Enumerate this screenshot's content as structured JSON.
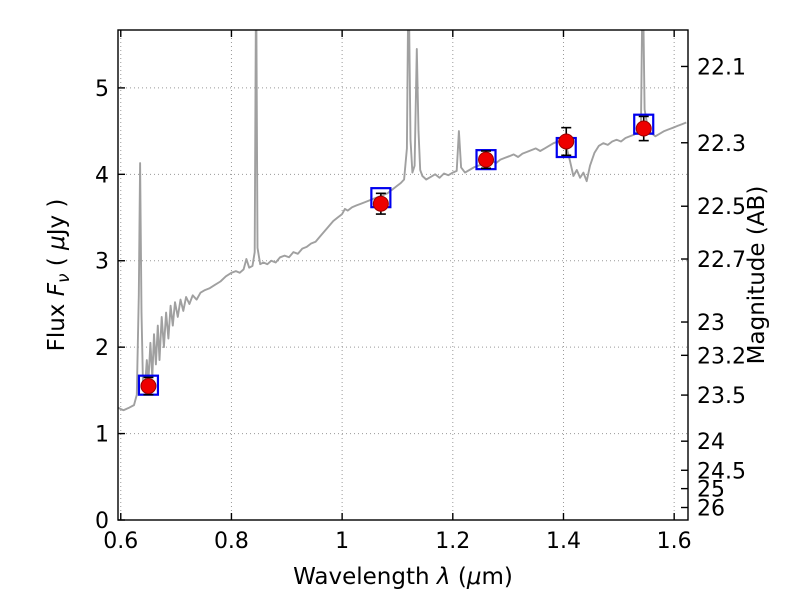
{
  "figure": {
    "background": "#ffffff"
  },
  "chart_data": {
    "type": "line",
    "title": "",
    "xlabel": "Wavelength λ (μm)",
    "xlabel_parts": [
      {
        "t": "Wavelength  "
      },
      {
        "t": "λ",
        "i": true
      },
      {
        "t": " ("
      },
      {
        "t": "μ",
        "i": true
      },
      {
        "t": "m)"
      }
    ],
    "ylabel_left": "Flux Fν ( μJy )",
    "ylabel_left_parts": [
      {
        "t": "Flux  "
      },
      {
        "t": "F",
        "i": true
      },
      {
        "t": "ν",
        "i": true,
        "sub": true
      },
      {
        "t": "  ( "
      },
      {
        "t": "μ",
        "i": true
      },
      {
        "t": "Jy )"
      }
    ],
    "ylabel_right": "Magnitude (AB)",
    "xlim": [
      0.595,
      1.625
    ],
    "ylim": [
      0,
      5.67
    ],
    "x_ticks": [
      0.6,
      0.8,
      1.0,
      1.2,
      1.4,
      1.6
    ],
    "x_tick_labels": [
      "0.6",
      "0.8",
      "1",
      "1.2",
      "1.4",
      "1.6"
    ],
    "y_ticks_left": [
      0,
      1,
      2,
      3,
      4,
      5
    ],
    "y_tick_labels_left": [
      "0",
      "1",
      "2",
      "3",
      "4",
      "5"
    ],
    "y_ticks_right": [
      22.1,
      22.3,
      22.5,
      22.7,
      23,
      23.2,
      23.5,
      24,
      24.5,
      25,
      26
    ],
    "y_tick_labels_right": [
      "22.1",
      "22.3",
      "22.5",
      "22.7",
      "23",
      "23.2",
      "23.5",
      "24",
      "24.5",
      "25",
      "26"
    ],
    "ab_zeropoint": 23.9,
    "grid_style": "dotted",
    "colors": {
      "spectrum": "#a0a0a0",
      "model_photometry": "#0000ee",
      "observed_photometry": "#ee0000",
      "observed_edge": "#990000",
      "errorbar": "#000000",
      "grid": "#999999",
      "axis": "#000000",
      "background": "#ffffff"
    },
    "series": {
      "spectrum": {
        "name": "model-spectrum",
        "x": [
          0.595,
          0.605,
          0.615,
          0.624,
          0.629,
          0.6325,
          0.635,
          0.6375,
          0.64,
          0.644,
          0.647,
          0.65,
          0.6535,
          0.657,
          0.66,
          0.6635,
          0.667,
          0.67,
          0.674,
          0.678,
          0.682,
          0.686,
          0.69,
          0.694,
          0.698,
          0.703,
          0.708,
          0.713,
          0.718,
          0.724,
          0.73,
          0.737,
          0.744,
          0.752,
          0.76,
          0.77,
          0.78,
          0.79,
          0.8,
          0.808,
          0.815,
          0.822,
          0.827,
          0.832,
          0.838,
          0.842,
          0.8445,
          0.847,
          0.852,
          0.858,
          0.865,
          0.872,
          0.88,
          0.888,
          0.896,
          0.904,
          0.912,
          0.92,
          0.928,
          0.936,
          0.944,
          0.952,
          0.96,
          0.968,
          0.976,
          0.984,
          0.992,
          1.0,
          1.005,
          1.01,
          1.018,
          1.026,
          1.034,
          1.042,
          1.05,
          1.058,
          1.066,
          1.074,
          1.082,
          1.09,
          1.098,
          1.106,
          1.112,
          1.117,
          1.12,
          1.1235,
          1.127,
          1.131,
          1.135,
          1.138,
          1.141,
          1.145,
          1.152,
          1.16,
          1.168,
          1.176,
          1.184,
          1.192,
          1.2,
          1.207,
          1.211,
          1.215,
          1.222,
          1.23,
          1.238,
          1.246,
          1.254,
          1.262,
          1.27,
          1.278,
          1.286,
          1.294,
          1.302,
          1.31,
          1.318,
          1.326,
          1.334,
          1.342,
          1.35,
          1.358,
          1.366,
          1.374,
          1.382,
          1.39,
          1.398,
          1.406,
          1.412,
          1.418,
          1.424,
          1.43,
          1.436,
          1.442,
          1.448,
          1.456,
          1.464,
          1.472,
          1.48,
          1.488,
          1.496,
          1.504,
          1.512,
          1.52,
          1.528,
          1.535,
          1.54,
          1.5432,
          1.5465,
          1.552,
          1.558,
          1.566,
          1.574,
          1.582,
          1.59,
          1.598,
          1.606,
          1.614,
          1.622
        ],
        "y": [
          1.3,
          1.27,
          1.3,
          1.33,
          1.45,
          2.6,
          4.13,
          2.4,
          1.62,
          1.55,
          1.85,
          1.6,
          2.05,
          1.65,
          2.15,
          1.8,
          2.25,
          1.85,
          2.35,
          2.0,
          2.4,
          2.1,
          2.48,
          2.25,
          2.52,
          2.35,
          2.55,
          2.42,
          2.58,
          2.5,
          2.6,
          2.55,
          2.63,
          2.66,
          2.68,
          2.72,
          2.76,
          2.82,
          2.86,
          2.88,
          2.86,
          2.9,
          3.02,
          2.92,
          2.94,
          3.1,
          6.4,
          3.15,
          2.96,
          2.98,
          2.96,
          3.0,
          2.98,
          3.04,
          3.06,
          3.04,
          3.1,
          3.08,
          3.14,
          3.16,
          3.2,
          3.22,
          3.28,
          3.34,
          3.4,
          3.46,
          3.5,
          3.54,
          3.6,
          3.58,
          3.62,
          3.64,
          3.66,
          3.68,
          3.7,
          3.72,
          3.74,
          3.76,
          3.78,
          3.82,
          3.86,
          3.9,
          3.94,
          4.3,
          6.4,
          4.4,
          4.02,
          4.1,
          5.45,
          4.5,
          4.05,
          3.98,
          3.94,
          3.97,
          4.0,
          3.96,
          4.01,
          3.99,
          4.02,
          4.04,
          4.5,
          4.08,
          4.02,
          4.05,
          4.08,
          4.1,
          4.12,
          4.14,
          4.16,
          4.13,
          4.17,
          4.19,
          4.21,
          4.23,
          4.2,
          4.24,
          4.26,
          4.28,
          4.3,
          4.27,
          4.3,
          4.33,
          4.36,
          4.38,
          4.36,
          4.3,
          4.15,
          3.98,
          4.05,
          3.96,
          4.02,
          3.92,
          4.1,
          4.25,
          4.33,
          4.36,
          4.34,
          4.38,
          4.4,
          4.38,
          4.42,
          4.44,
          4.46,
          4.5,
          4.6,
          6.4,
          4.75,
          4.55,
          4.48,
          4.44,
          4.47,
          4.5,
          4.52,
          4.54,
          4.56,
          4.58,
          4.6
        ]
      },
      "model_photometry": {
        "name": "model-photometry",
        "marker": "open-square",
        "x": [
          0.65,
          1.07,
          1.26,
          1.405,
          1.545
        ],
        "y": [
          1.56,
          3.73,
          4.17,
          4.31,
          4.58
        ]
      },
      "observed_photometry": {
        "name": "observed-photometry",
        "marker": "filled-circle",
        "x": [
          0.65,
          1.07,
          1.26,
          1.405,
          1.545
        ],
        "y": [
          1.55,
          3.66,
          4.17,
          4.38,
          4.53
        ],
        "yerr": [
          0.1,
          0.12,
          0.1,
          0.16,
          0.14
        ]
      }
    }
  }
}
